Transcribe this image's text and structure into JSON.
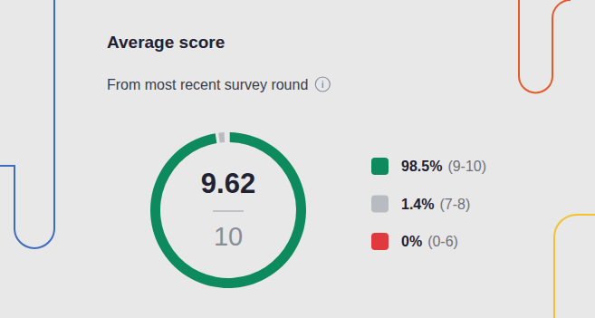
{
  "chart_data": {
    "type": "donut",
    "title": "Average score",
    "subtitle": "From most recent survey round",
    "info_icon": "i",
    "center_value": 9.62,
    "center_max": 10,
    "categories": [
      "(9-10)",
      "(7-8)",
      "(0-6)"
    ],
    "values": [
      98.5,
      1.4,
      0
    ],
    "value_labels": [
      "98.5%",
      "1.4%",
      "0%"
    ],
    "colors": [
      "#0e8a5f",
      "#b8bcc1",
      "#e03a3e"
    ],
    "legend": "right"
  }
}
